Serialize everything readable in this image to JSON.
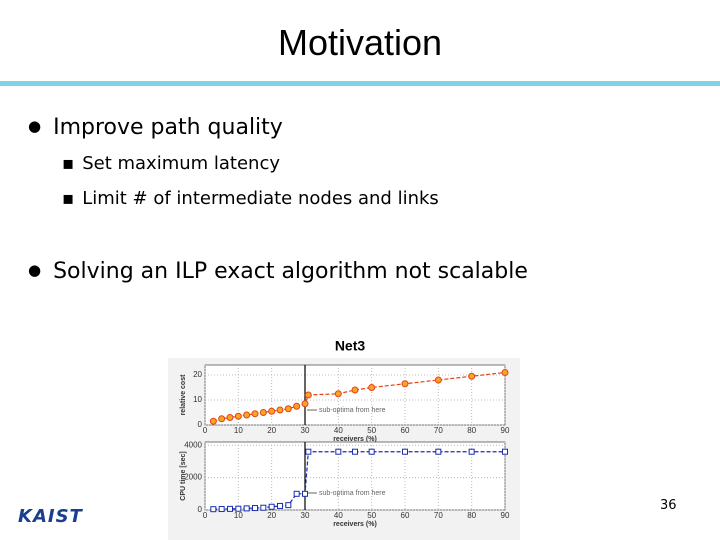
{
  "slide": {
    "title": "Motivation",
    "bullets": [
      {
        "text": "Improve path quality",
        "sub": [
          "Set maximum latency",
          "Limit # of intermediate nodes and links"
        ]
      },
      {
        "text": "Solving an ILP exact algorithm not scalable"
      }
    ],
    "figure": {
      "title": "Net3",
      "charts": [
        {
          "type": "line",
          "ylabel": "relative cost",
          "xlabel": "receivers (%)",
          "annotation": "sub-optima from here",
          "threshold_x": 30,
          "grid": true,
          "x": [
            2.5,
            5,
            7.5,
            10,
            12.5,
            15,
            17.5,
            20,
            22.5,
            25,
            27.5,
            30,
            31,
            40,
            45,
            50,
            60,
            70,
            80,
            90
          ],
          "series": [
            {
              "color": "#e8421a",
              "marker": "circle",
              "values": [
                1.5,
                2.5,
                3,
                3.5,
                4,
                4.5,
                5,
                5.5,
                6,
                6.5,
                7.5,
                8.5,
                12,
                12.5,
                14,
                15,
                16.5,
                18,
                19.5,
                21
              ]
            }
          ],
          "xlim": [
            0,
            90
          ],
          "ylim": [
            0,
            24
          ],
          "xticks": [
            0,
            10,
            20,
            30,
            40,
            50,
            60,
            70,
            80,
            90
          ],
          "yticks": [
            0,
            10,
            20
          ]
        },
        {
          "type": "line",
          "ylabel": "CPU time [sec]",
          "xlabel": "receivers (%)",
          "annotation": "sub-optima from here",
          "threshold_x": 30,
          "grid": true,
          "x": [
            2.5,
            5,
            7.5,
            10,
            12.5,
            15,
            17.5,
            20,
            22.5,
            25,
            27.5,
            30,
            31,
            40,
            45,
            50,
            60,
            70,
            80,
            90
          ],
          "series": [
            {
              "color": "#1a2fb0",
              "marker": "square",
              "values": [
                50,
                60,
                70,
                80,
                100,
                120,
                140,
                200,
                250,
                300,
                1000,
                1000,
                3600,
                3600,
                3600,
                3600,
                3600,
                3600,
                3600,
                3600
              ]
            }
          ],
          "xlim": [
            0,
            90
          ],
          "ylim": [
            0,
            4200
          ],
          "xticks": [
            0,
            10,
            20,
            30,
            40,
            50,
            60,
            70,
            80,
            90
          ],
          "yticks": [
            0,
            2000,
            4000
          ]
        }
      ]
    },
    "page_number": 36,
    "logo": "KAIST"
  }
}
